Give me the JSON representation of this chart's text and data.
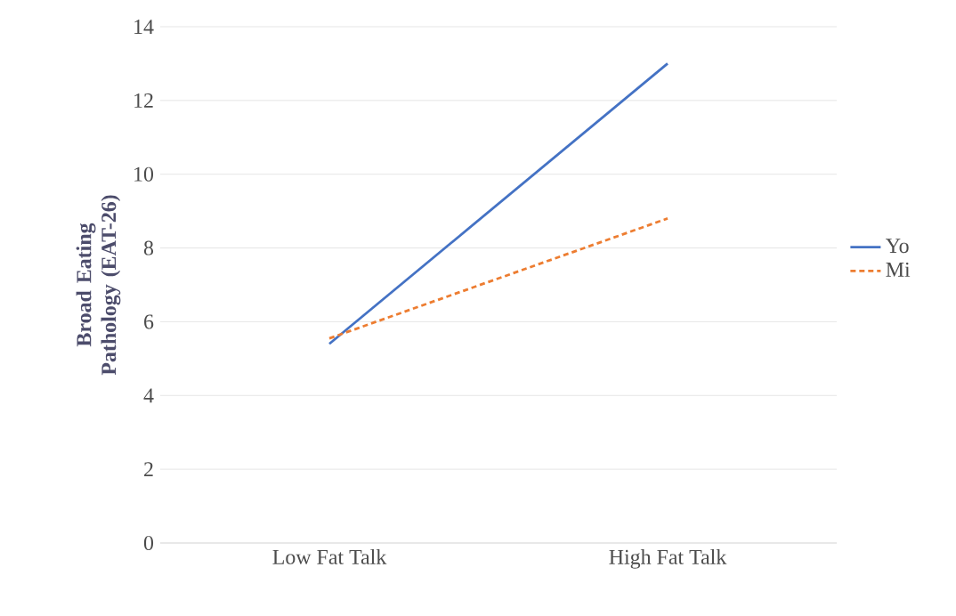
{
  "chart_data": {
    "type": "line",
    "ylabel": "Broad Eating Pathology (EAT-26)",
    "categories": [
      "Low Fat Talk",
      "High Fat Talk"
    ],
    "series": [
      {
        "name": "Yo",
        "color": "#4472c4",
        "values": [
          5.4,
          13.0
        ],
        "line_style": "solid"
      },
      {
        "name": "Mi",
        "color": "#ed7d31",
        "values": [
          5.55,
          8.8
        ],
        "line_style": "dashed"
      }
    ],
    "ylim": [
      0,
      14
    ],
    "yticks": [
      0,
      2,
      4,
      6,
      8,
      10,
      12,
      14
    ],
    "grid": "y",
    "legend": "right",
    "marker": "none"
  }
}
